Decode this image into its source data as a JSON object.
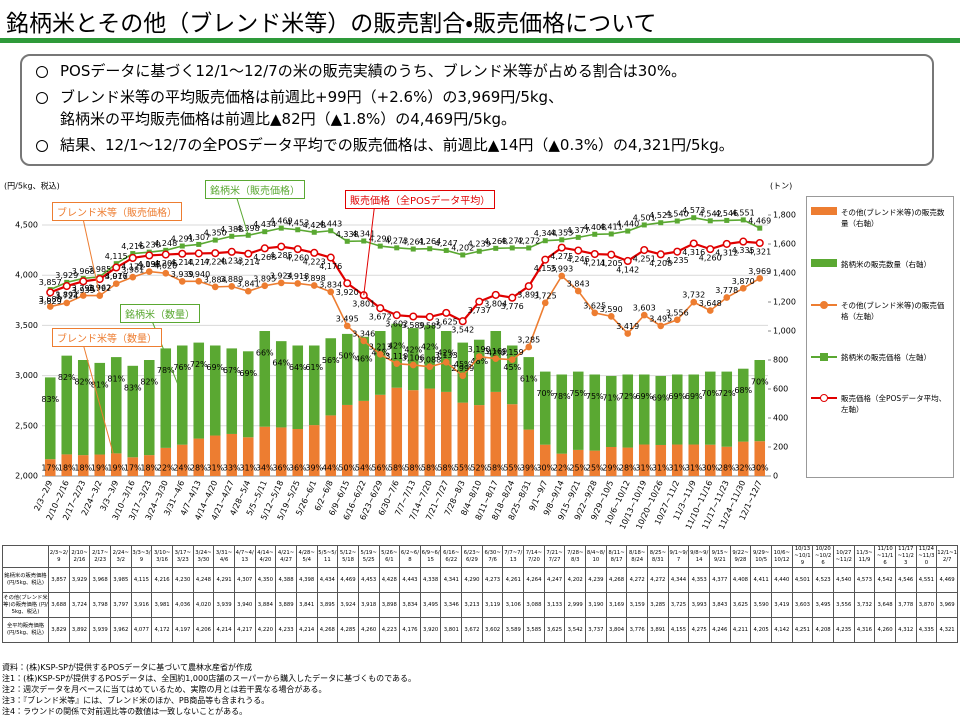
{
  "header": {
    "title": "銘柄米とその他（ブレンド米等）の販売割合・販売価格について"
  },
  "summary": [
    [
      "POSデータに基づく12/1～12/7の米の販売実績のうち、ブレンド米等が占める割合は30%。"
    ],
    [
      "ブレンド米等の平均販売価格は前週比+99円（+2.6%）の3,969円/5kg、",
      "銘柄米の平均販売価格は前週比▲82円（▲1.8%）の4,469円/5kg。"
    ],
    [
      "結果、12/1～12/7の全POSデータ平均での販売価格は、前週比▲14円（▲0.3%）の4,321円/5kg。"
    ]
  ],
  "chart_data": {
    "type": "combo",
    "y_label": "(円/5kg、税込)",
    "y2_label": "(トン)",
    "grid": true,
    "legend": "right",
    "categories": [
      "2/3~2/9",
      "2/10~2/16",
      "2/17~2/23",
      "2/24~3/2",
      "3/3~3/9",
      "3/10~3/16",
      "3/17~3/23",
      "3/24~3/30",
      "3/31~4/6",
      "4/7~4/13",
      "4/14~4/20",
      "4/21~4/27",
      "4/28~5/4",
      "5/5~5/11",
      "5/12~5/18",
      "5/19~5/25",
      "5/26~6/1",
      "6/2~6/8",
      "6/9~6/15",
      "6/16~6/22",
      "6/23~6/29",
      "6/30~7/6",
      "7/7~7/13",
      "7/14~7/20",
      "7/21~7/27",
      "7/28~8/3",
      "8/4~8/10",
      "8/11~8/17",
      "8/18~8/24",
      "8/25~8/31",
      "9/1~9/7",
      "9/8~9/14",
      "9/15~9/21",
      "9/22~9/28",
      "9/29~10/5",
      "10/6~10/12",
      "10/13~10/19",
      "10/20~10/26",
      "10/27~11/2",
      "11/3~11/9",
      "11/10~11/16",
      "11/17~11/23",
      "11/24~11/30",
      "12/1~12/7"
    ],
    "ylim": [
      2000,
      4600
    ],
    "yticks": [
      {
        "value": 2000,
        "label": "2,000"
      },
      {
        "value": 2500,
        "label": "2,500"
      },
      {
        "value": 3000,
        "label": "3,000"
      },
      {
        "value": 3500,
        "label": "3,500"
      },
      {
        "value": 4000,
        "label": "4,000"
      },
      {
        "value": 4500,
        "label": "4,500"
      }
    ],
    "y2lim": [
      0,
      1800
    ],
    "y2ticks": [
      0,
      200,
      400,
      600,
      800,
      {
        "value": 1000,
        "label": "1,000"
      },
      {
        "value": 1200,
        "label": "1,200"
      },
      {
        "value": 1400,
        "label": "1,400"
      },
      {
        "value": 1600,
        "label": "1,600"
      },
      {
        "value": 1800,
        "label": "1,800"
      }
    ],
    "series": [
      {
        "name": "その他(ブレンド米等)の販売数量（右軸）",
        "type": "bar",
        "axis": "y2",
        "color": "#ed7d31",
        "values": [
          116,
          149,
          144,
          148,
          156,
          129,
          144,
          194,
          216,
          258,
          279,
          290,
          267,
          340,
          335,
          324,
          351,
          418,
          490,
          518,
          560,
          609,
          592,
          603,
          580,
          506,
          489,
          580,
          495,
          320,
          216,
          154,
          180,
          175,
          200,
          196,
          217,
          214,
          217,
          217,
          216,
          202,
          237,
          240
        ],
        "share_labels": [
          "17%",
          "18%",
          "18%",
          "19%",
          "19%",
          "17%",
          "18%",
          "22%",
          "24%",
          "28%",
          "31%",
          "33%",
          "31%",
          "34%",
          "36%",
          "36%",
          "39%",
          "44%",
          "50%",
          "54%",
          "56%",
          "58%",
          "58%",
          "58%",
          "58%",
          "55%",
          "52%",
          "58%",
          "55%",
          "39%",
          "30%",
          "22%",
          "25%",
          "25%",
          "29%",
          "28%",
          "31%",
          "31%",
          "31%",
          "31%",
          "30%",
          "28%",
          "32%",
          "30%"
        ]
      },
      {
        "name": "銘柄米の販売数量（右軸）",
        "type": "bar",
        "axis": "y2",
        "color": "#5aa832",
        "values": [
          564,
          681,
          656,
          632,
          664,
          631,
          656,
          686,
          684,
          662,
          621,
          590,
          593,
          660,
          595,
          576,
          549,
          532,
          490,
          442,
          440,
          441,
          428,
          437,
          420,
          414,
          451,
          420,
          405,
          500,
          504,
          546,
          540,
          525,
          490,
          504,
          483,
          476,
          483,
          483,
          504,
          518,
          503,
          560
        ],
        "share_labels": [
          "83%",
          "82%",
          "82%",
          "81%",
          "81%",
          "83%",
          "82%",
          "78%",
          "76%",
          "72%",
          "69%",
          "67%",
          "69%",
          "66%",
          "64%",
          "64%",
          "61%",
          "56%",
          "50%",
          "46%",
          "44%",
          "42%",
          "42%",
          "42%",
          "42%",
          "45%",
          "48%",
          "42%",
          "45%",
          "61%",
          "70%",
          "78%",
          "75%",
          "75%",
          "71%",
          "72%",
          "69%",
          "69%",
          "69%",
          "69%",
          "70%",
          "72%",
          "68%",
          "70%"
        ]
      },
      {
        "name": "その他(ブレンド米等)の販売価格（左軸）",
        "type": "line",
        "color": "#ed7d31",
        "values": [
          3688,
          3724,
          3798,
          3797,
          3916,
          3981,
          4036,
          4020,
          3939,
          3940,
          3884,
          3889,
          3841,
          3895,
          3924,
          3918,
          3898,
          3834,
          3495,
          3346,
          3213,
          3119,
          3106,
          3088,
          3133,
          2999,
          3190,
          3169,
          3159,
          3285,
          3725,
          3993,
          3843,
          3625,
          3590,
          3419,
          3603,
          3495,
          3556,
          3732,
          3648,
          3778,
          3870,
          3969
        ],
        "value_labels": [
          "3,688",
          "3,724",
          "3,798",
          "3,797",
          "3,916",
          "3,981",
          "4,036",
          "4,020",
          "3,939",
          "3,940",
          "3,884",
          "3,889",
          "3,841",
          "3,895",
          "3,924",
          "3,918",
          "3,898",
          "3,834",
          "3,495",
          "3,346",
          "3,213",
          "3,119",
          "3,106",
          "3,088",
          "3,133",
          "2,999",
          "3,190",
          "3,169",
          "3,159",
          "3,285",
          "3,725",
          "3,993",
          "3,843",
          "3,625",
          "3,590",
          "3,419",
          "3,603",
          "3,495",
          "3,556",
          "3,732",
          "3,648",
          "3,778",
          "3,870",
          "3,969"
        ]
      },
      {
        "name": "銘柄米の販売価格（左軸）",
        "type": "line",
        "color": "#5aa832",
        "values": [
          3857,
          3929,
          3968,
          3985,
          4115,
          4216,
          4230,
          4248,
          4291,
          4307,
          4350,
          4388,
          4398,
          4434,
          4469,
          4453,
          4428,
          4443,
          4338,
          4341,
          4290,
          4273,
          4261,
          4264,
          4247,
          4202,
          4239,
          4268,
          4272,
          4272,
          4344,
          4353,
          4377,
          4408,
          4411,
          4440,
          4501,
          4523,
          4540,
          4573,
          4542,
          4546,
          4551,
          4469
        ],
        "value_labels": [
          "3,857",
          "3,929",
          "3,968",
          "3,985",
          "4,115",
          "4,216",
          "4,230",
          "4,248",
          "4,291",
          "4,307",
          "4,350",
          "4,388",
          "4,398",
          "4,434",
          "4,469",
          "4,453",
          "4,428",
          "4,443",
          "4,338",
          "4,341",
          "4,290",
          "4,273",
          "4,261",
          "4,264",
          "4,247",
          "4,202",
          "4,239",
          "4,268",
          "4,272",
          "4,272",
          "4,344",
          "4,353",
          "4,377",
          "4,408",
          "4,411",
          "4,440",
          "4,501",
          "4,523",
          "4,540",
          "4,573",
          "4,542",
          "4,546",
          "4,551",
          "4,469"
        ]
      },
      {
        "name": "販売価格（全POSデータ平均、左軸）",
        "type": "line",
        "color": "#e00000",
        "values": [
          3829,
          3892,
          3939,
          3962,
          4077,
          4172,
          4197,
          4206,
          4214,
          4217,
          4220,
          4233,
          4214,
          4268,
          4285,
          4260,
          4223,
          4176,
          3920,
          3801,
          3672,
          3602,
          3589,
          3585,
          3625,
          3542,
          3737,
          3804,
          3776,
          3891,
          4155,
          4275,
          4246,
          4211,
          4205,
          4142,
          4251,
          4208,
          4235,
          4316,
          4260,
          4312,
          4335,
          4321
        ],
        "value_labels": [
          "3,829",
          "3,892",
          "3,939",
          "3,962",
          "4,077",
          "4,172",
          "4,197",
          "4,206",
          "4,214",
          "4,217",
          "4,220",
          "4,233",
          "4,214",
          "4,268",
          "4,285",
          "4,260",
          "4,223",
          "4,176",
          "3,920",
          "3,801",
          "3,672",
          "3,602",
          "3,589",
          "3,585",
          "3,625",
          "3,542",
          "3,737",
          "3,804",
          "3,776",
          "3,891",
          "4,155",
          "4,275",
          "4,246",
          "4,211",
          "4,205",
          "4,142",
          "4,251",
          "4,208",
          "4,235",
          "4,316",
          "4,260",
          "4,312",
          "4,335",
          "4,321"
        ]
      }
    ],
    "annotations": [
      {
        "text": "ブレンド米等（販売価格）",
        "color": "#ed7d31"
      },
      {
        "text": "銘柄米（販売価格）",
        "color": "#5aa832"
      },
      {
        "text": "販売価格（全POSデータ平均）",
        "color": "#e00000"
      },
      {
        "text": "銘柄米（数量）",
        "color": "#5aa832"
      },
      {
        "text": "ブレンド米等（数量）",
        "color": "#ed7d31"
      }
    ]
  },
  "table": {
    "row_labels": [
      "銘柄米の販売価格 (円/5kg、税込)",
      "その他(ブレンド米等)の販売価格 (円/5kg、税込)",
      "全平均販売価格 (円/5kg、税込)"
    ]
  },
  "notes": [
    "資料：(株)KSP-SPが提供するPOSデータに基づいて農林水産省が作成",
    "注1：(株)KSP-SPが提供するPOSデータは、全国約1,000店舗のスーパーから購入したデータに基づくものである。",
    "注2：週次データを月ベースに当てはめているため、実際の月とは若干異なる場合がある。",
    "注3：『ブレンド米等』には、ブレンド米のほか、PB商品等も含まれうる。",
    "注4：ラウンドの関係で対前週比等の数値は一致しないことがある。"
  ]
}
